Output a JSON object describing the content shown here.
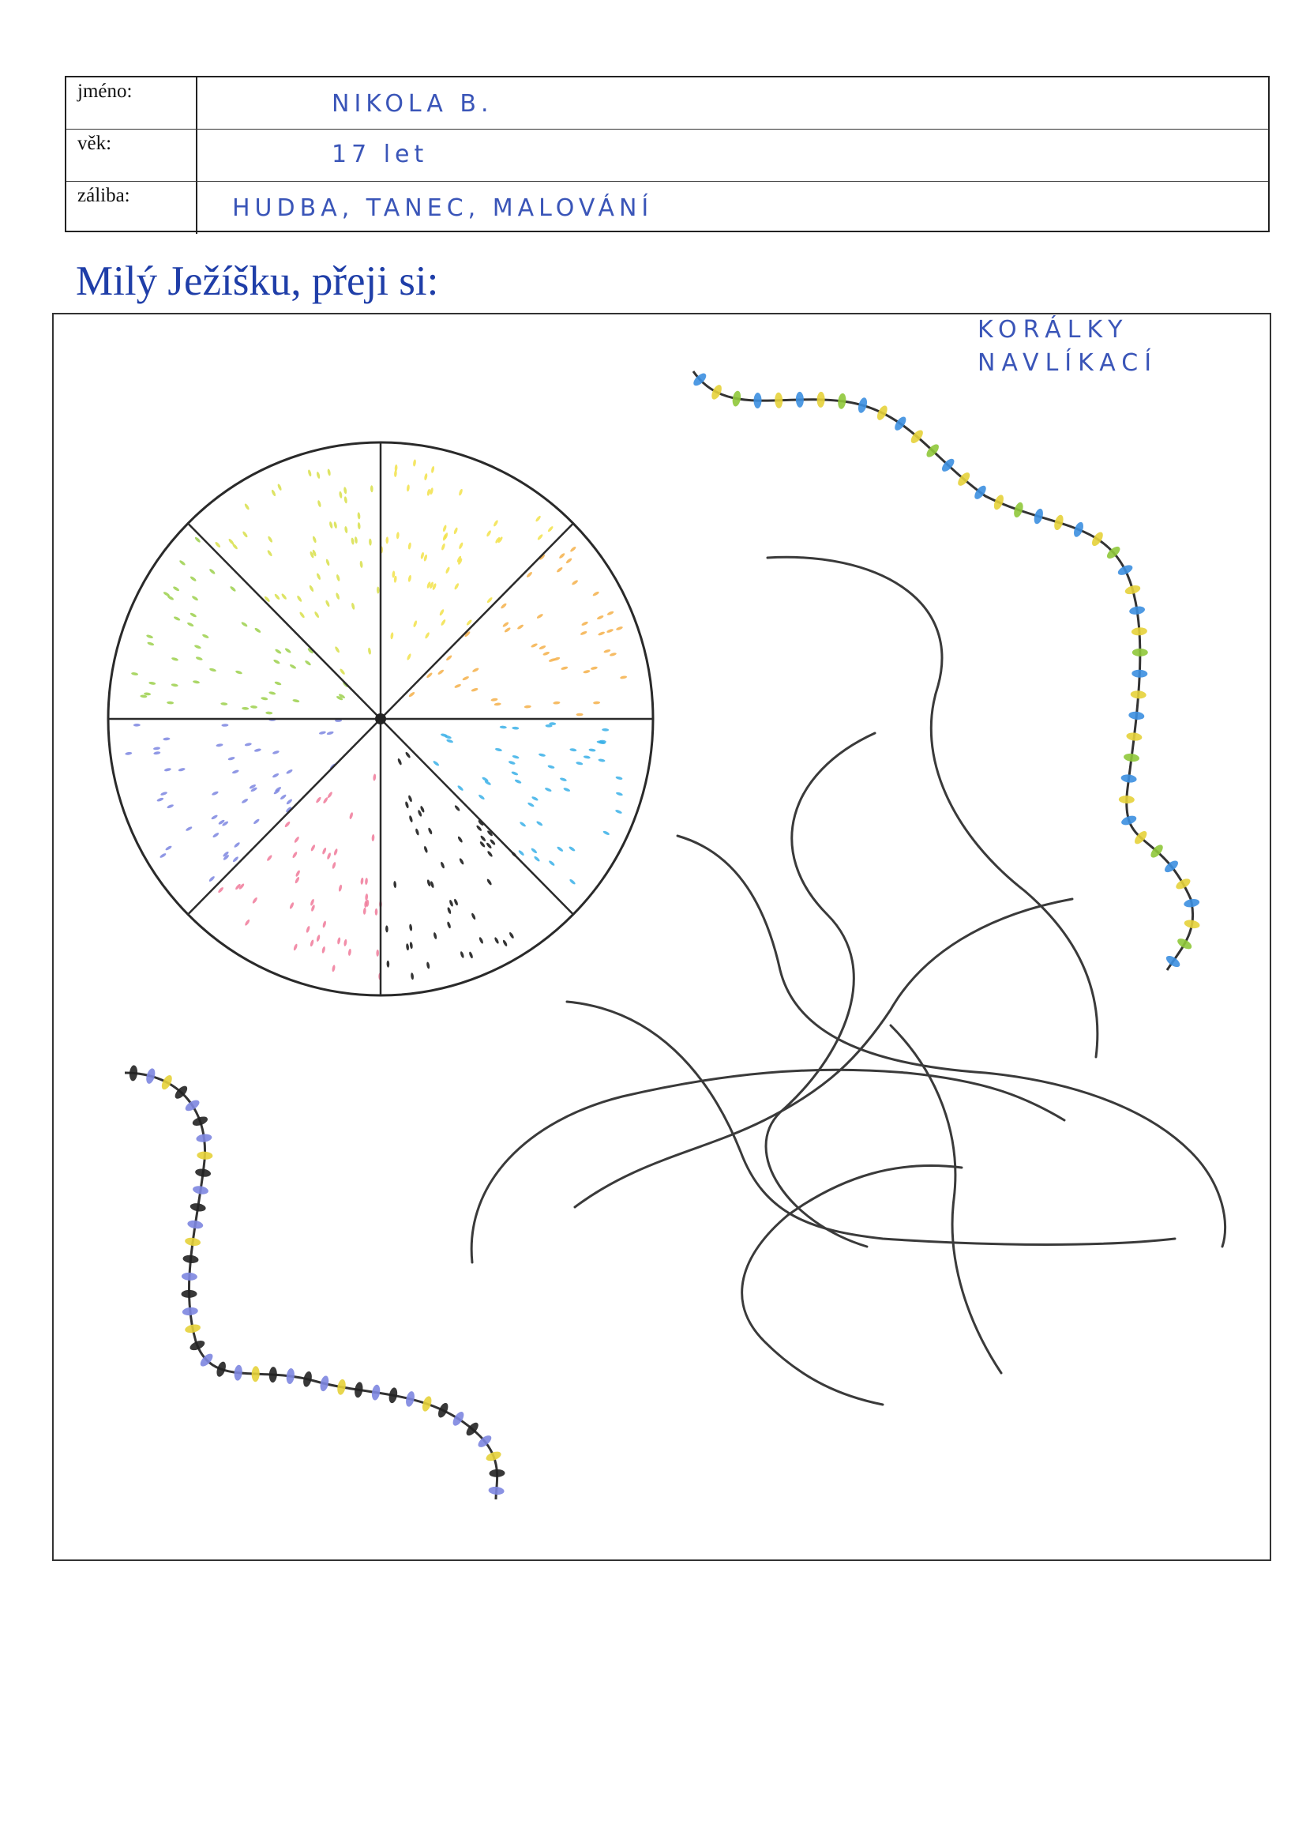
{
  "form": {
    "rows": [
      {
        "label": "jméno:",
        "value": "NIKOLA B."
      },
      {
        "label": "věk:",
        "value": "17 let"
      },
      {
        "label": "záliba:",
        "value": "HUDBA, TANEC, MALOVÁNÍ"
      }
    ]
  },
  "heading": "Milý Ježíšku, přeji si:",
  "drawing": {
    "note_line1": "KORÁLKY",
    "note_line2": "NAVLÍKACÍ",
    "wheel_segment_colors": [
      "#f2e24a",
      "#f5b04a",
      "#3ab0e8",
      "#111111",
      "#f07a9a",
      "#7d86e0",
      "#9cd04c",
      "#d8df4a"
    ],
    "bead_colors": [
      "#3c8fe0",
      "#e5d23a",
      "#8fc83a",
      "#222222",
      "#7d86e0"
    ]
  }
}
